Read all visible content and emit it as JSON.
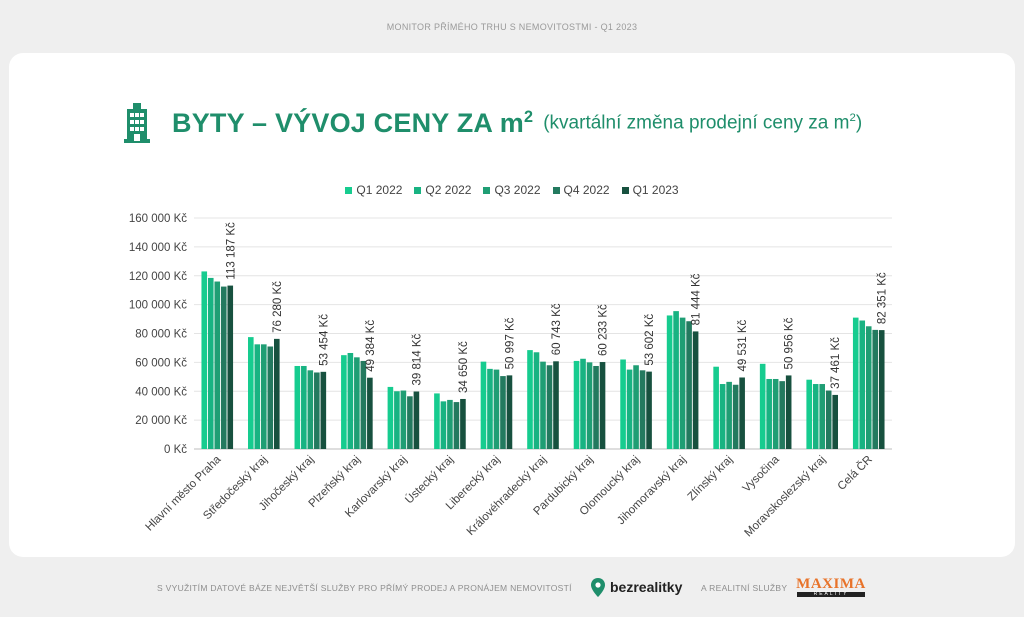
{
  "header": {
    "top_title": "MONITOR PŘÍMÉHO TRHU S NEMOVITOSTMI - Q1 2023",
    "title_main": "BYTY – VÝVOJ CENY ZA m",
    "title_sup": "2",
    "subtitle_main": "(kvartální změna prodejní ceny za m",
    "subtitle_sup": "2",
    "subtitle_end": ")",
    "icon": "building-icon"
  },
  "colors": {
    "title": "#1f8e6b",
    "series": [
      "#16cc8f",
      "#18b382",
      "#1f9e74",
      "#237a5f",
      "#17513f"
    ]
  },
  "chart_data": {
    "type": "bar",
    "categories": [
      "Hlavní město Praha",
      "Středočeský kraj",
      "Jihočeský kraj",
      "Plzeňský kraj",
      "Karlovarský kraj",
      "Ústecký kraj",
      "Liberecký kraj",
      "Královéhradecký kraj",
      "Pardubický kraj",
      "Olomoucký kraj",
      "Jihomoravský kraj",
      "Zlínský kraj",
      "Vysočina",
      "Moravskoslezský kraj",
      "Celá ČR"
    ],
    "series": [
      {
        "name": "Q1 2022",
        "values": [
          123000,
          77500,
          57500,
          65000,
          43000,
          38500,
          60500,
          68500,
          61000,
          62000,
          92500,
          57000,
          59000,
          48000,
          91000
        ]
      },
      {
        "name": "Q2 2022",
        "values": [
          118500,
          72500,
          57500,
          66500,
          40000,
          33000,
          55500,
          67000,
          62500,
          55000,
          95500,
          45000,
          48500,
          45000,
          89000
        ]
      },
      {
        "name": "Q3 2022",
        "values": [
          116000,
          72500,
          54500,
          63500,
          40500,
          34000,
          55000,
          60500,
          60000,
          58000,
          91000,
          46500,
          48500,
          45000,
          85000
        ]
      },
      {
        "name": "Q4 2022",
        "values": [
          112500,
          71000,
          53000,
          61000,
          36500,
          32500,
          50500,
          58000,
          57500,
          54500,
          88500,
          44500,
          47000,
          40500,
          82500
        ]
      },
      {
        "name": "Q1 2023",
        "values": [
          113187,
          76280,
          53454,
          49384,
          39814,
          34650,
          50997,
          60743,
          60233,
          53602,
          81444,
          49531,
          50956,
          37461,
          82351
        ]
      }
    ],
    "data_labels": [
      "113 187 Kč",
      "76 280 Kč",
      "53 454 Kč",
      "49 384 Kč",
      "39 814 Kč",
      "34 650 Kč",
      "50 997 Kč",
      "60 743 Kč",
      "60 233 Kč",
      "53 602 Kč",
      "81 444 Kč",
      "49 531 Kč",
      "50 956 Kč",
      "37 461 Kč",
      "82 351 Kč"
    ],
    "y_ticks": [
      "0 Kč",
      "20 000 Kč",
      "40 000 Kč",
      "60 000 Kč",
      "80 000 Kč",
      "100 000 Kč",
      "120 000 Kč",
      "140 000 Kč",
      "160 000 Kč"
    ],
    "ylim": [
      0,
      160000
    ],
    "grid": true,
    "legend_position": "top"
  },
  "footer": {
    "text_left": "S VYUŽITÍM DATOVÉ BÁZE NEJVĚTŠÍ SLUŽBY PRO PŘÍMÝ PRODEJ A PRONÁJEM NEMOVITOSTÍ",
    "brand": "bezrealitky",
    "brand_icon": "location-pin-icon",
    "text_mid": "A REALITNÍ SLUŽBY",
    "partner": "MAXIMA",
    "partner_sub": "REALITY"
  }
}
